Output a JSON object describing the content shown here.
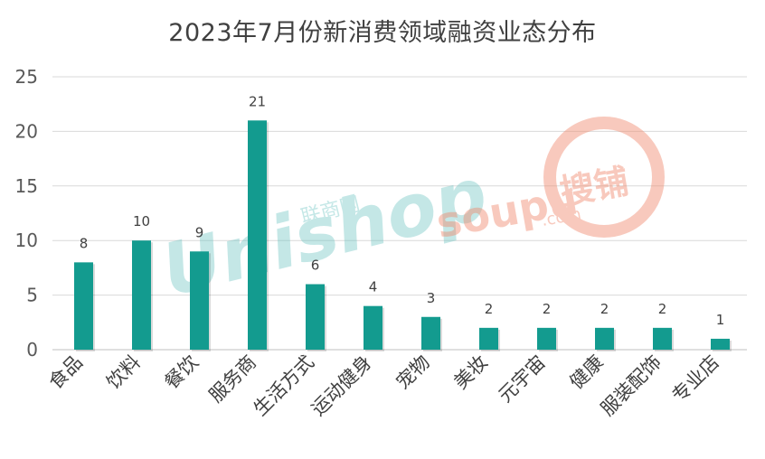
{
  "chart_data": {
    "type": "bar",
    "title": "2023年7月份新消费领域融资业态分布",
    "categories": [
      "食品",
      "饮料",
      "餐饮",
      "服务商",
      "生活方式",
      "运动健身",
      "宠物",
      "美妆",
      "元宇宙",
      "健康",
      "服装配饰",
      "专业店"
    ],
    "values": [
      8,
      10,
      9,
      21,
      6,
      4,
      3,
      2,
      2,
      2,
      2,
      1
    ],
    "ylim": [
      0,
      25
    ],
    "yticks": [
      0,
      5,
      10,
      15,
      20,
      25
    ],
    "grid": true,
    "bar_color": "#139b8f",
    "data_labels": true
  },
  "watermarks": {
    "left": {
      "text": "Unishop",
      "cn": "联商网",
      "color": "#66c2c0"
    },
    "right": {
      "text": "soupu",
      "sub": ".com",
      "cn": "搜铺",
      "color": "#f08a6e"
    }
  }
}
